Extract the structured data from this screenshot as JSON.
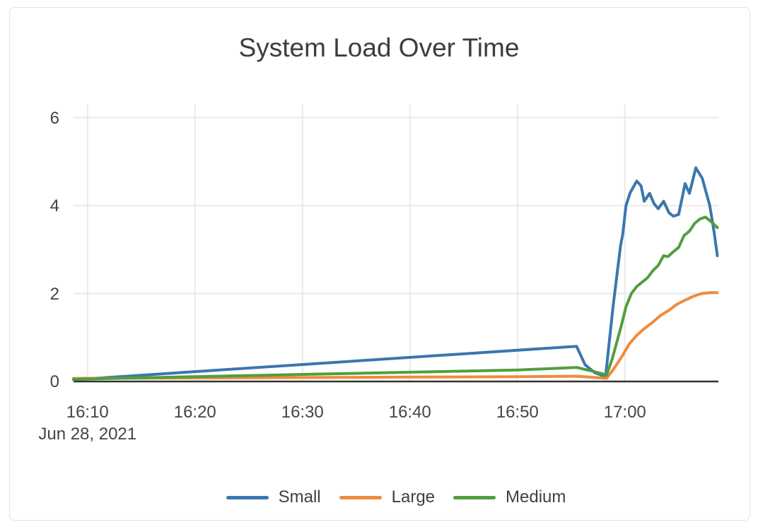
{
  "title": "System Load Over Time",
  "date_label": "Jun 28, 2021",
  "colors": {
    "small": "#3b76af",
    "large": "#ef8b3c",
    "medium": "#519e3e",
    "grid": "#e9e9e9",
    "zero_line": "#333333",
    "axis_text": "#444444",
    "title_text": "#3d3d3d",
    "card_border": "#e3e3e3",
    "background": "#ffffff"
  },
  "legend": {
    "position": "bottom-center",
    "items": [
      {
        "label": "Small",
        "color": "#3b76af"
      },
      {
        "label": "Large",
        "color": "#ef8b3c"
      },
      {
        "label": "Medium",
        "color": "#519e3e"
      }
    ]
  },
  "chart_data": {
    "type": "line",
    "title": "System Load Over Time",
    "xlabel": "",
    "ylabel": "",
    "date_label": "Jun 28, 2021",
    "x_unit": "time of day on Jun 28, 2021; series point x = minutes after 16:00",
    "xlim": [
      8.7,
      68.7
    ],
    "ylim": [
      0,
      6.3
    ],
    "grid": true,
    "legend_position": "bottom",
    "x_ticks": [
      {
        "t": 10,
        "label": "16:10"
      },
      {
        "t": 20,
        "label": "16:20"
      },
      {
        "t": 30,
        "label": "16:30"
      },
      {
        "t": 40,
        "label": "16:40"
      },
      {
        "t": 50,
        "label": "16:50"
      },
      {
        "t": 60,
        "label": "17:00"
      }
    ],
    "y_ticks": [
      {
        "v": 0,
        "label": "0"
      },
      {
        "v": 2,
        "label": "2"
      },
      {
        "v": 4,
        "label": "4"
      },
      {
        "v": 6,
        "label": "6"
      }
    ],
    "series": [
      {
        "name": "Small",
        "color": "#3b76af",
        "points": [
          [
            8.7,
            0.04
          ],
          [
            55.5,
            0.8
          ],
          [
            56.3,
            0.38
          ],
          [
            57.2,
            0.2
          ],
          [
            58.2,
            0.11
          ],
          [
            58.9,
            1.7
          ],
          [
            59.3,
            2.5
          ],
          [
            59.6,
            3.1
          ],
          [
            59.8,
            3.35
          ],
          [
            60.1,
            4.0
          ],
          [
            60.5,
            4.3
          ],
          [
            61.1,
            4.56
          ],
          [
            61.5,
            4.45
          ],
          [
            61.8,
            4.1
          ],
          [
            62.3,
            4.28
          ],
          [
            62.7,
            4.05
          ],
          [
            63.1,
            3.93
          ],
          [
            63.6,
            4.1
          ],
          [
            64.1,
            3.84
          ],
          [
            64.5,
            3.76
          ],
          [
            65.0,
            3.8
          ],
          [
            65.6,
            4.5
          ],
          [
            66.0,
            4.28
          ],
          [
            66.6,
            4.86
          ],
          [
            67.2,
            4.62
          ],
          [
            67.9,
            4.0
          ],
          [
            68.3,
            3.4
          ],
          [
            68.6,
            2.86
          ]
        ]
      },
      {
        "name": "Large",
        "color": "#ef8b3c",
        "points": [
          [
            8.7,
            0.07
          ],
          [
            20,
            0.08
          ],
          [
            30,
            0.09
          ],
          [
            40,
            0.1
          ],
          [
            50,
            0.11
          ],
          [
            55.5,
            0.12
          ],
          [
            58.3,
            0.07
          ],
          [
            59.0,
            0.3
          ],
          [
            59.7,
            0.56
          ],
          [
            60.4,
            0.85
          ],
          [
            61.1,
            1.05
          ],
          [
            61.8,
            1.2
          ],
          [
            62.6,
            1.35
          ],
          [
            63.3,
            1.5
          ],
          [
            64.1,
            1.62
          ],
          [
            64.8,
            1.75
          ],
          [
            65.6,
            1.85
          ],
          [
            66.3,
            1.93
          ],
          [
            67.1,
            2.0
          ],
          [
            68.0,
            2.02
          ],
          [
            68.6,
            2.02
          ]
        ]
      },
      {
        "name": "Medium",
        "color": "#519e3e",
        "points": [
          [
            8.7,
            0.05
          ],
          [
            20,
            0.11
          ],
          [
            30,
            0.16
          ],
          [
            40,
            0.21
          ],
          [
            50,
            0.26
          ],
          [
            55.5,
            0.32
          ],
          [
            57.2,
            0.22
          ],
          [
            58.3,
            0.15
          ],
          [
            58.8,
            0.5
          ],
          [
            59.2,
            0.85
          ],
          [
            59.7,
            1.3
          ],
          [
            60.1,
            1.7
          ],
          [
            60.6,
            2.0
          ],
          [
            61.1,
            2.16
          ],
          [
            61.6,
            2.26
          ],
          [
            62.1,
            2.36
          ],
          [
            62.6,
            2.52
          ],
          [
            63.1,
            2.64
          ],
          [
            63.6,
            2.86
          ],
          [
            64.0,
            2.84
          ],
          [
            64.5,
            2.95
          ],
          [
            65.0,
            3.05
          ],
          [
            65.5,
            3.32
          ],
          [
            66.0,
            3.42
          ],
          [
            66.5,
            3.6
          ],
          [
            67.0,
            3.7
          ],
          [
            67.5,
            3.74
          ],
          [
            68.1,
            3.62
          ],
          [
            68.6,
            3.5
          ]
        ]
      }
    ]
  }
}
